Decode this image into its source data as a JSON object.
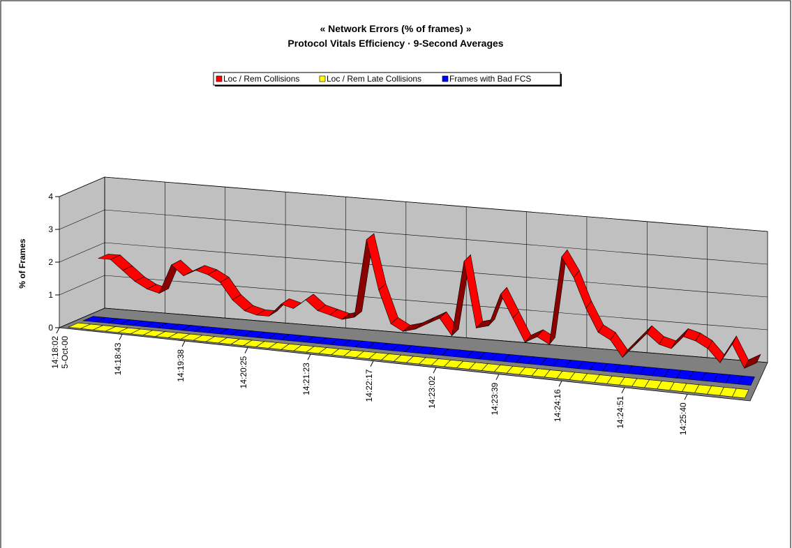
{
  "chart_data": {
    "type": "line3d",
    "title": "« Network Errors (% of frames) »",
    "subtitle": "Protocol Vitals Efficiency  ·  9-Second Averages",
    "y_label": "% of Frames",
    "date_label": "5-Oct-00",
    "categories": [
      "14:18:02",
      null,
      null,
      null,
      null,
      "14:18:43",
      null,
      null,
      null,
      null,
      "14:19:38",
      null,
      null,
      null,
      null,
      "14:20:25",
      null,
      null,
      null,
      null,
      "14:21:23",
      null,
      null,
      null,
      null,
      "14:22:17",
      null,
      null,
      null,
      null,
      "14:23:02",
      null,
      null,
      null,
      null,
      "14:23:39",
      null,
      null,
      null,
      null,
      "14:24:16",
      null,
      null,
      null,
      null,
      "14:24:51",
      null,
      null,
      null,
      null,
      "14:25:40",
      null,
      null,
      null,
      null
    ],
    "series": [
      {
        "name": "Loc / Rem Collisions",
        "color": "#ff0000",
        "values": [
          1.7,
          1.7,
          1.4,
          1.1,
          0.9,
          0.8,
          1.7,
          1.4,
          1.6,
          1.5,
          1.3,
          0.8,
          0.5,
          0.4,
          0.4,
          0.8,
          0.7,
          1.0,
          0.7,
          0.6,
          0.5,
          0.6,
          3.0,
          1.5,
          0.5,
          0.3,
          0.4,
          0.6,
          0.8,
          0.3,
          2.6,
          0.6,
          0.7,
          1.7,
          1.0,
          0.3,
          0.5,
          0.3,
          3.0,
          2.4,
          1.5,
          0.8,
          0.6,
          0.1,
          0.5,
          0.9,
          0.6,
          0.5,
          0.9,
          0.8,
          0.6,
          0.2,
          0.8,
          0.1,
          0.3
        ]
      },
      {
        "name": "Loc / Rem Late Collisions",
        "color": "#ffff00",
        "values": [
          0,
          0,
          0,
          0,
          0,
          0,
          0,
          0,
          0,
          0,
          0,
          0,
          0,
          0,
          0,
          0,
          0,
          0,
          0,
          0,
          0,
          0,
          0,
          0,
          0,
          0,
          0,
          0,
          0,
          0,
          0,
          0,
          0,
          0,
          0,
          0,
          0,
          0,
          0,
          0,
          0,
          0,
          0,
          0,
          0,
          0,
          0,
          0,
          0,
          0,
          0,
          0,
          0,
          0,
          0
        ]
      },
      {
        "name": "Frames with Bad FCS",
        "color": "#0000ff",
        "values": [
          0,
          0,
          0,
          0,
          0,
          0,
          0,
          0,
          0,
          0,
          0,
          0,
          0,
          0,
          0,
          0,
          0,
          0,
          0,
          0,
          0,
          0,
          0,
          0,
          0,
          0,
          0,
          0,
          0,
          0,
          0,
          0,
          0,
          0,
          0,
          0,
          0,
          0,
          0,
          0,
          0,
          0,
          0,
          0,
          0,
          0,
          0,
          0,
          0,
          0,
          0,
          0,
          0,
          0,
          0
        ]
      }
    ],
    "depth_order": [
      1,
      2,
      0
    ],
    "ylim": [
      0,
      4
    ],
    "yticks": [
      0,
      1,
      2,
      3,
      4
    ],
    "grid": true,
    "wall_color": "#c0c0c0",
    "floor_color": "#808080"
  }
}
